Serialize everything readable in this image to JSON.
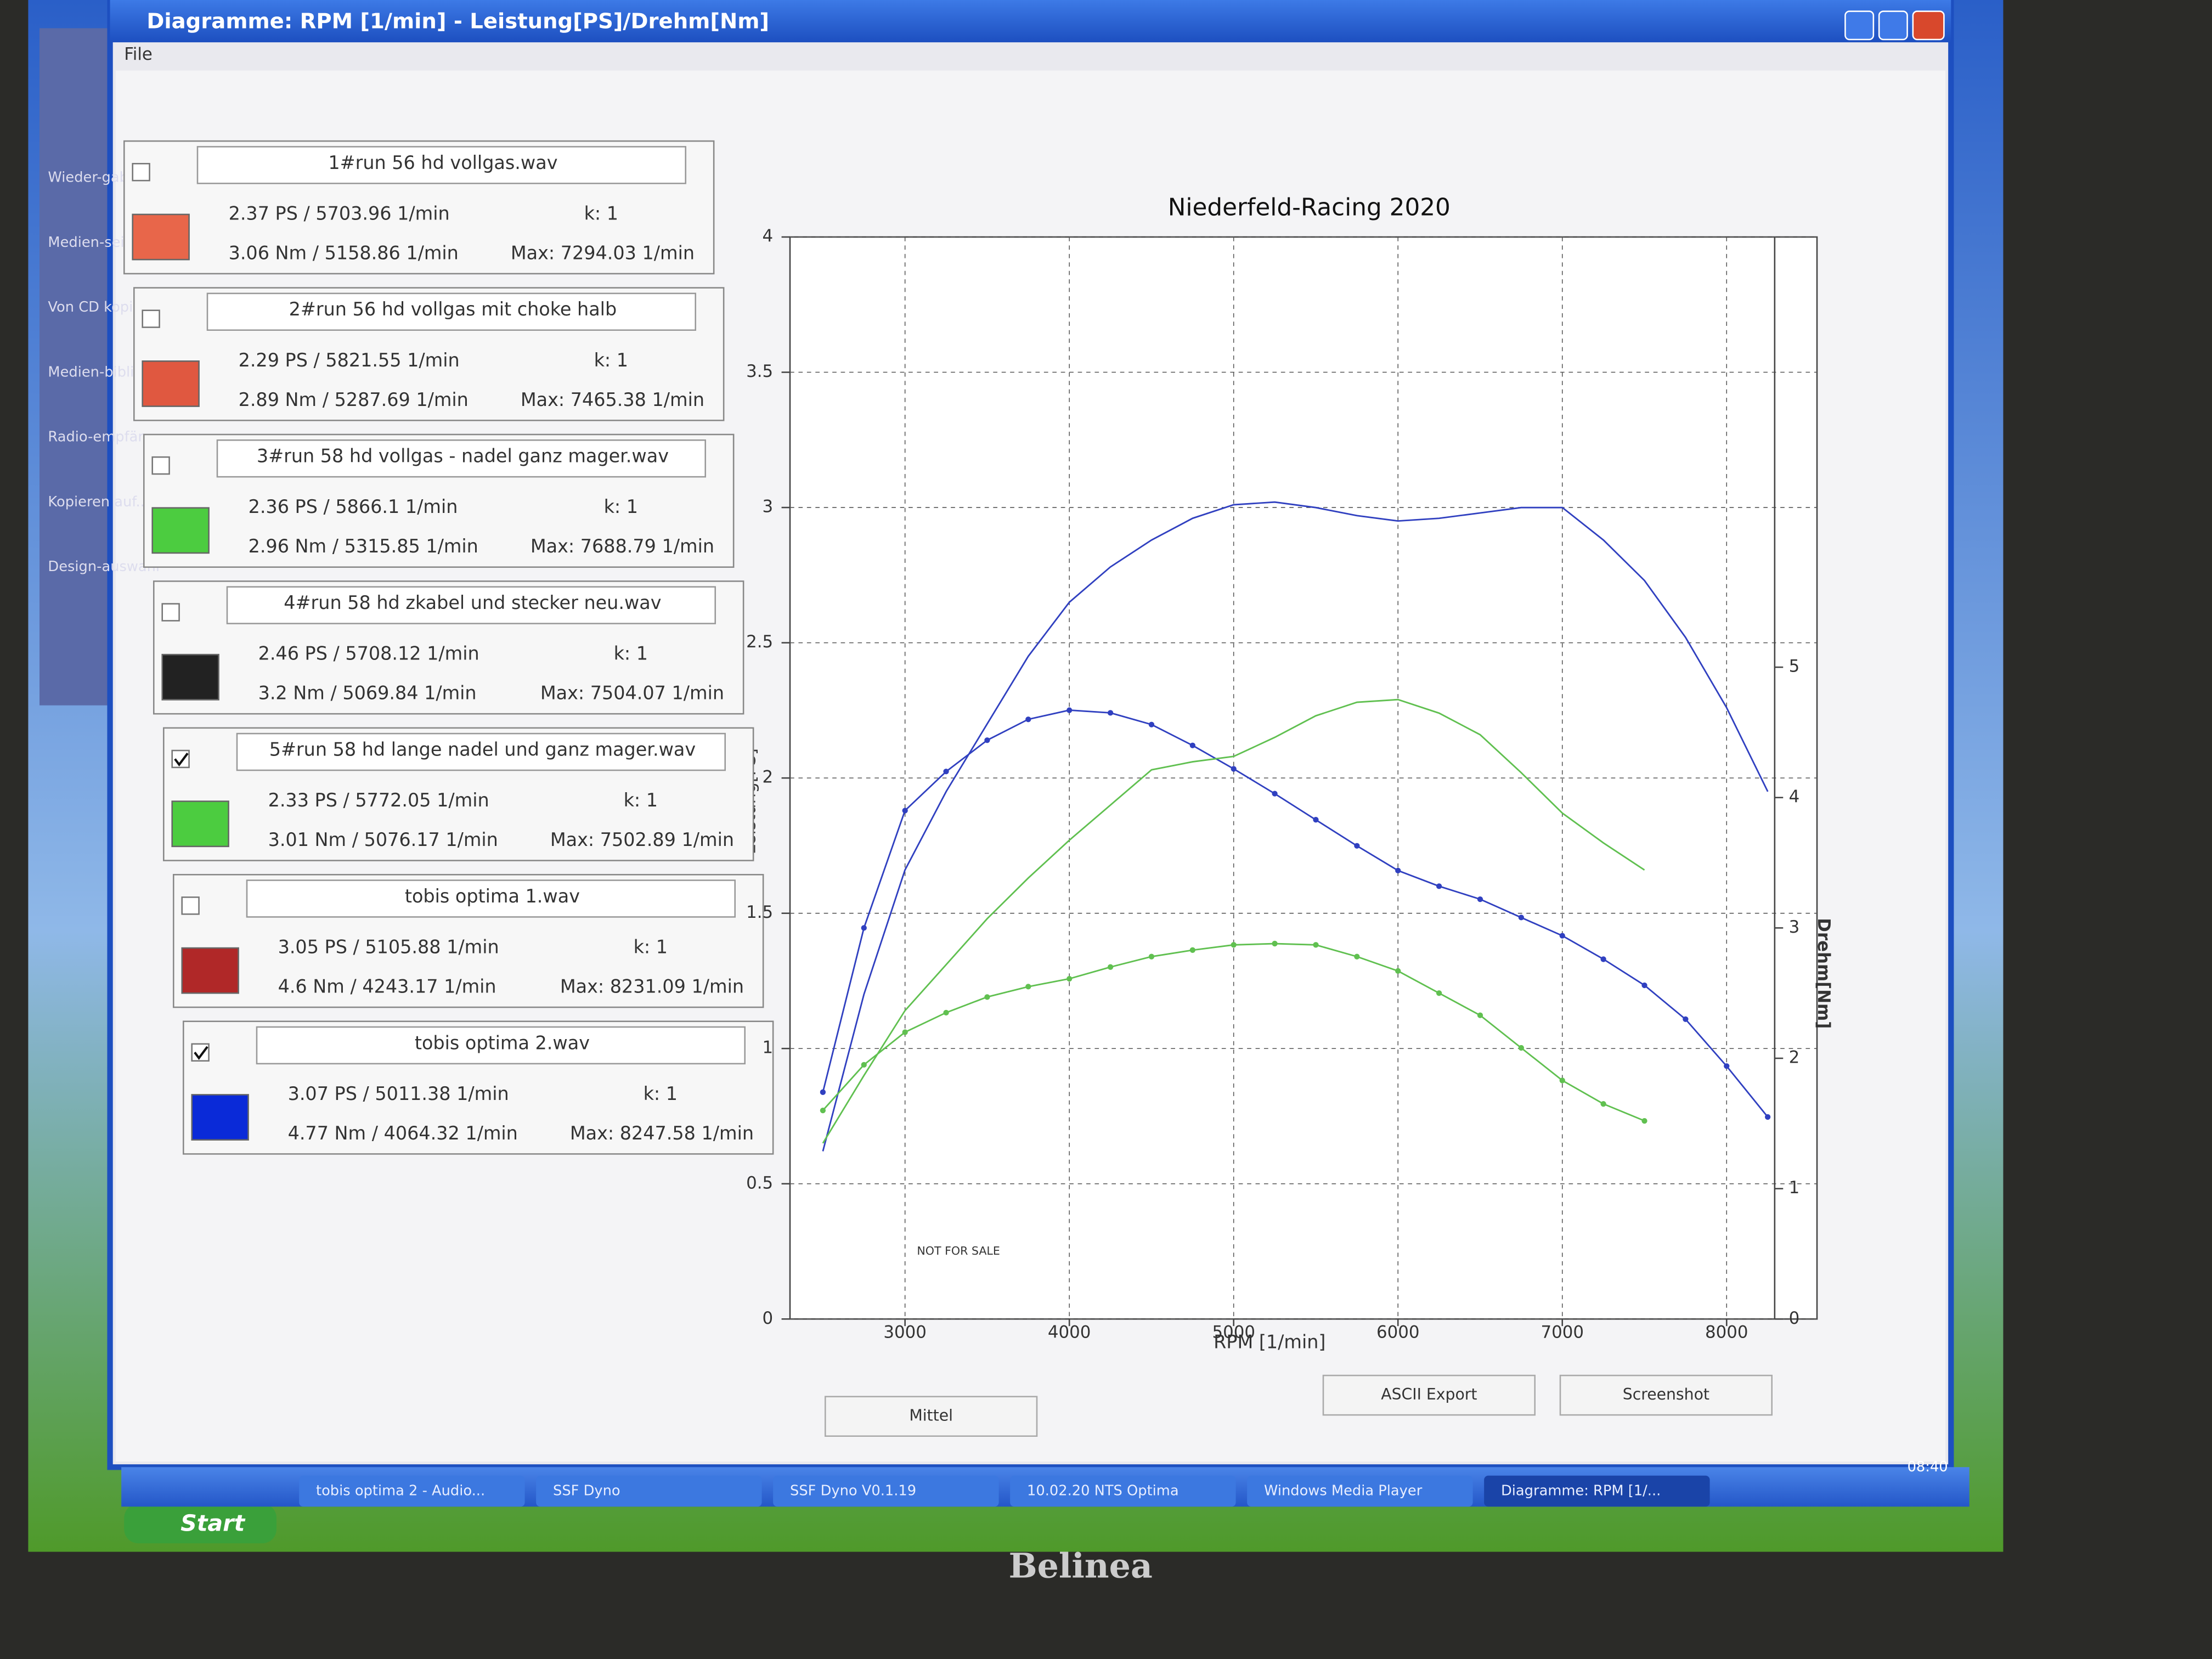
{
  "window": {
    "title": "Diagramme: RPM [1/min] - Leistung[PS]/Drehm[Nm]",
    "menu": "File"
  },
  "sidebar": [
    "Wieder-gabe",
    "Medien-seite",
    "Von CD kopieren",
    "Medien-bibliothek",
    "Radio-empfän",
    "Kopieren auf...",
    "Design-auswahl"
  ],
  "legend_panel": [
    {
      "name": "1#run 56 hd vollgas.wav",
      "power": "2.37 PS / 5703.96 1/min",
      "torque": "3.06 Nm / 5158.86 1/min",
      "k": "k: 1",
      "max": "Max: 7294.03 1/min",
      "color": "#e8664a",
      "checked": false
    },
    {
      "name": "2#run 56 hd vollgas mit choke halb",
      "power": "2.29 PS / 5821.55 1/min",
      "torque": "2.89 Nm / 5287.69 1/min",
      "k": "k: 1",
      "max": "Max: 7465.38 1/min",
      "color": "#e05840",
      "checked": false
    },
    {
      "name": "3#run 58 hd vollgas - nadel ganz mager.wav",
      "power": "2.36 PS / 5866.1 1/min",
      "torque": "2.96 Nm / 5315.85 1/min",
      "k": "k: 1",
      "max": "Max: 7688.79 1/min",
      "color": "#4ccc40",
      "checked": false
    },
    {
      "name": "4#run 58 hd zkabel und stecker neu.wav",
      "power": "2.46 PS / 5708.12 1/min",
      "torque": "3.2 Nm / 5069.84 1/min",
      "k": "k: 1",
      "max": "Max: 7504.07 1/min",
      "color": "#222222",
      "checked": false
    },
    {
      "name": "5#run 58 hd lange nadel und ganz mager.wav",
      "power": "2.33 PS / 5772.05 1/min",
      "torque": "3.01 Nm / 5076.17 1/min",
      "k": "k: 1",
      "max": "Max: 7502.89 1/min",
      "color": "#4ccc40",
      "checked": true
    },
    {
      "name": "tobis optima 1.wav",
      "power": "3.05 PS / 5105.88 1/min",
      "torque": "4.6 Nm / 4243.17 1/min",
      "k": "k: 1",
      "max": "Max: 8231.09 1/min",
      "color": "#b02828",
      "checked": false
    },
    {
      "name": "tobis optima 2.wav",
      "power": "3.07 PS / 5011.38 1/min",
      "torque": "4.77 Nm / 4064.32 1/min",
      "k": "k: 1",
      "max": "Max: 8247.58 1/min",
      "color": "#0a2ad8",
      "checked": true
    }
  ],
  "chart_data": {
    "type": "line",
    "title": "Niederfeld-Racing 2020",
    "x_label": "RPM [1/min]",
    "y_label": "Leistung[PS]",
    "y2_label": "Drehm[Nm]",
    "annotation": "NOT FOR SALE",
    "grid": true,
    "xlim": [
      2300,
      8550
    ],
    "xticks": [
      3000,
      4000,
      5000,
      6000,
      7000,
      8000
    ],
    "ylim": [
      0,
      4
    ],
    "yticks": [
      0,
      0.5,
      1,
      1.5,
      2,
      2.5,
      3,
      3.5,
      4
    ],
    "y2lim": [
      0,
      8.3
    ],
    "y2ticks": [
      0,
      1,
      2,
      3,
      4,
      5
    ],
    "x": [
      2500,
      2750,
      3000,
      3250,
      3500,
      3750,
      4000,
      4250,
      4500,
      4750,
      5000,
      5250,
      5500,
      5750,
      6000,
      6250,
      6500,
      6750,
      7000,
      7250,
      7500,
      7750,
      8000,
      8250
    ],
    "series": [
      {
        "color": "#3040c0",
        "axis": "y",
        "markers": false,
        "values": [
          0.62,
          1.2,
          1.66,
          1.95,
          2.2,
          2.45,
          2.65,
          2.78,
          2.88,
          2.96,
          3.01,
          3.02,
          3.0,
          2.97,
          2.95,
          2.96,
          2.98,
          3.0,
          3.0,
          2.88,
          2.73,
          2.52,
          2.26,
          1.95
        ]
      },
      {
        "color": "#3040c0",
        "axis": "y2",
        "markers": true,
        "values": [
          1.74,
          3.0,
          3.9,
          4.2,
          4.44,
          4.6,
          4.67,
          4.65,
          4.56,
          4.4,
          4.22,
          4.03,
          3.83,
          3.63,
          3.44,
          3.32,
          3.22,
          3.08,
          2.94,
          2.76,
          2.56,
          2.3,
          1.94,
          1.55
        ]
      },
      {
        "color": "#60c050",
        "axis": "y",
        "markers": false,
        "values": [
          0.65,
          0.9,
          1.14,
          1.31,
          1.48,
          1.63,
          1.77,
          1.9,
          2.03,
          2.06,
          2.08,
          2.15,
          2.23,
          2.28,
          2.29,
          2.24,
          2.16,
          2.02,
          1.87,
          1.76,
          1.66,
          null,
          null,
          null
        ]
      },
      {
        "color": "#60c050",
        "axis": "y2",
        "markers": true,
        "values": [
          1.6,
          1.95,
          2.2,
          2.35,
          2.47,
          2.55,
          2.61,
          2.7,
          2.78,
          2.83,
          2.87,
          2.88,
          2.87,
          2.78,
          2.67,
          2.5,
          2.33,
          2.08,
          1.83,
          1.65,
          1.52,
          null,
          null,
          null
        ]
      }
    ]
  },
  "buttons": [
    "Mittel",
    "ASCII Export",
    "Screenshot"
  ],
  "taskbar": {
    "start": "Start",
    "items": [
      "tobis optima 2 - Audio...",
      "SSF Dyno",
      "SSF Dyno V0.1.19",
      "10.02.20 NTS Optima",
      "Windows Media Player",
      "Diagramme: RPM [1/..."
    ],
    "clock": "08:40"
  },
  "monitor": {
    "brand": "Belinea"
  }
}
